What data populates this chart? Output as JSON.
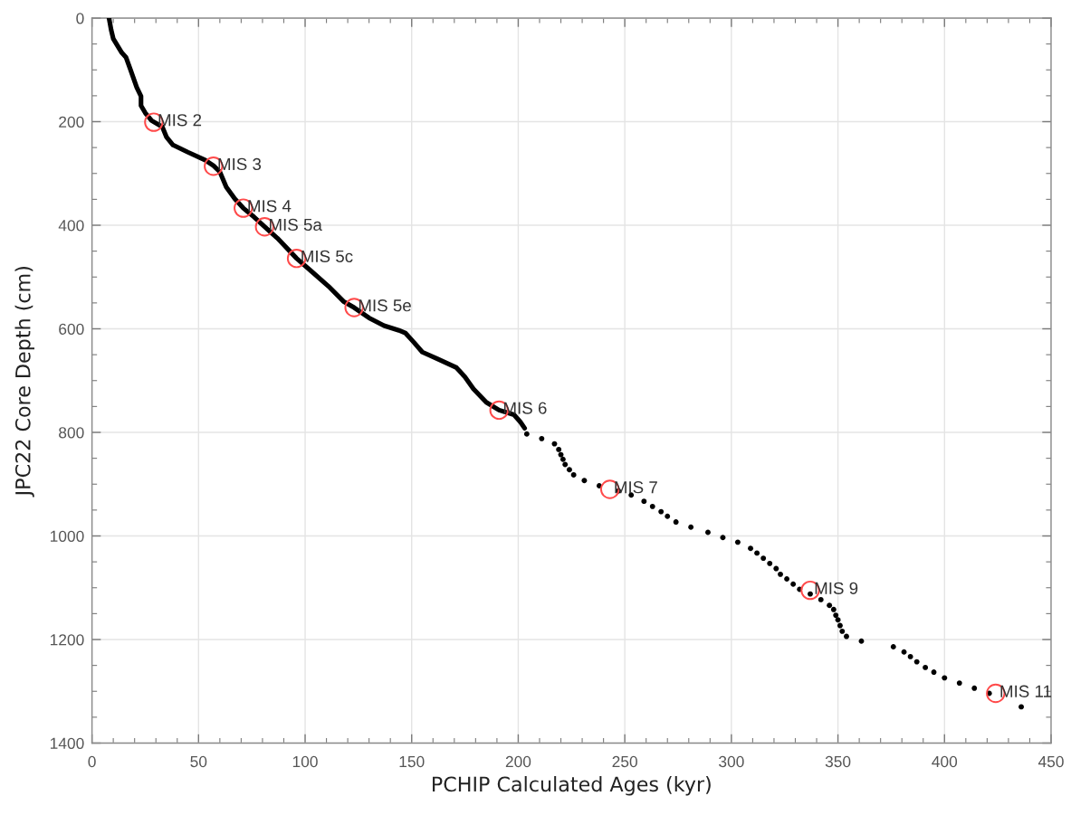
{
  "chart_data": {
    "type": "line",
    "xlabel": "PCHIP Calculated Ages (kyr)",
    "ylabel": "JPC22 Core Depth (cm)",
    "xlim": [
      0,
      450
    ],
    "ylim": [
      1400,
      0
    ],
    "xticks": [
      0,
      {
        "value": 10,
        "label": null
      },
      {
        "value": 20,
        "label": null
      },
      {
        "value": 30,
        "label": null
      },
      {
        "value": 40,
        "label": null
      },
      50,
      {
        "value": 60,
        "label": null
      },
      {
        "value": 70,
        "label": null
      },
      {
        "value": 80,
        "label": null
      },
      {
        "value": 90,
        "label": null
      },
      100,
      {
        "value": 110,
        "label": null
      },
      {
        "value": 120,
        "label": null
      },
      {
        "value": 130,
        "label": null
      },
      {
        "value": 140,
        "label": null
      },
      150,
      {
        "value": 160,
        "label": null
      },
      {
        "value": 170,
        "label": null
      },
      {
        "value": 180,
        "label": null
      },
      {
        "value": 190,
        "label": null
      },
      200,
      {
        "value": 210,
        "label": null
      },
      {
        "value": 220,
        "label": null
      },
      {
        "value": 230,
        "label": null
      },
      {
        "value": 240,
        "label": null
      },
      250,
      {
        "value": 260,
        "label": null
      },
      {
        "value": 270,
        "label": null
      },
      {
        "value": 280,
        "label": null
      },
      {
        "value": 290,
        "label": null
      },
      300,
      {
        "value": 310,
        "label": null
      },
      {
        "value": 320,
        "label": null
      },
      {
        "value": 330,
        "label": null
      },
      {
        "value": 340,
        "label": null
      },
      350,
      {
        "value": 360,
        "label": null
      },
      {
        "value": 370,
        "label": null
      },
      {
        "value": 380,
        "label": null
      },
      {
        "value": 390,
        "label": null
      },
      400,
      {
        "value": 410,
        "label": null
      },
      {
        "value": 420,
        "label": null
      },
      {
        "value": 430,
        "label": null
      },
      {
        "value": 440,
        "label": null
      },
      450
    ],
    "yticks": [
      0,
      {
        "value": 50,
        "label": null
      },
      {
        "value": 100,
        "label": null
      },
      {
        "value": 150,
        "label": null
      },
      200,
      {
        "value": 250,
        "label": null
      },
      {
        "value": 300,
        "label": null
      },
      {
        "value": 350,
        "label": null
      },
      400,
      {
        "value": 450,
        "label": null
      },
      {
        "value": 500,
        "label": null
      },
      {
        "value": 550,
        "label": null
      },
      600,
      {
        "value": 650,
        "label": null
      },
      {
        "value": 700,
        "label": null
      },
      {
        "value": 750,
        "label": null
      },
      800,
      {
        "value": 850,
        "label": null
      },
      {
        "value": 900,
        "label": null
      },
      {
        "value": 950,
        "label": null
      },
      1000,
      {
        "value": 1050,
        "label": null
      },
      {
        "value": 1100,
        "label": null
      },
      {
        "value": 1150,
        "label": null
      },
      1200,
      {
        "value": 1250,
        "label": null
      },
      {
        "value": 1300,
        "label": null
      },
      {
        "value": 1350,
        "label": null
      },
      1400
    ],
    "grid": true,
    "series": [
      {
        "color": "#000000",
        "line_style": "solid",
        "x": [
          8,
          9,
          10,
          14,
          16,
          18,
          21,
          23,
          23,
          25,
          28,
          33,
          35,
          38,
          45,
          53,
          57,
          60,
          63,
          67,
          71,
          76,
          81,
          87,
          96,
          103,
          111,
          118,
          123,
          130,
          137,
          144,
          147,
          151,
          155,
          162,
          171,
          175,
          179,
          185,
          191,
          198,
          201,
          203
        ],
        "values": [
          0,
          23,
          40,
          67,
          76,
          99,
          134,
          151,
          169,
          183,
          198,
          210,
          230,
          245,
          259,
          274,
          285,
          297,
          326,
          349,
          367,
          384,
          403,
          425,
          464,
          489,
          518,
          547,
          559,
          579,
          594,
          603,
          608,
          626,
          645,
          658,
          675,
          693,
          716,
          742,
          757,
          766,
          780,
          792
        ]
      },
      {
        "type": "scatter",
        "color": "#000000",
        "marker": "circle",
        "x": [
          204,
          211,
          217,
          219,
          220,
          221,
          222,
          224,
          226,
          231,
          238,
          247,
          253,
          259,
          263,
          267,
          270,
          274,
          281,
          289,
          296,
          303,
          309,
          312,
          315,
          318,
          321,
          323,
          326,
          329,
          332,
          337,
          342,
          346,
          348,
          349,
          350,
          351,
          352,
          354,
          361,
          376,
          381,
          384,
          387,
          391,
          395,
          400,
          407,
          414,
          421,
          436
        ],
        "values": [
          803,
          812,
          822,
          833,
          843,
          852,
          862,
          872,
          882,
          893,
          903,
          913,
          921,
          933,
          943,
          953,
          962,
          973,
          983,
          993,
          1003,
          1012,
          1024,
          1033,
          1043,
          1053,
          1063,
          1074,
          1083,
          1093,
          1103,
          1112,
          1123,
          1134,
          1142,
          1153,
          1162,
          1173,
          1184,
          1194,
          1203,
          1214,
          1224,
          1233,
          1243,
          1254,
          1263,
          1274,
          1284,
          1294,
          1304,
          1330
        ]
      }
    ],
    "annotations": [
      {
        "text": "MIS 2",
        "x": 29,
        "y": 201
      },
      {
        "text": "MIS 3",
        "x": 57,
        "y": 286
      },
      {
        "text": "MIS 4",
        "x": 71,
        "y": 367
      },
      {
        "text": "MIS 5a",
        "x": 81,
        "y": 403
      },
      {
        "text": "MIS 5c",
        "x": 96,
        "y": 464
      },
      {
        "text": "MIS 5e",
        "x": 123,
        "y": 559
      },
      {
        "text": "MIS 6",
        "x": 191,
        "y": 757
      },
      {
        "text": "MIS 7",
        "x": 243,
        "y": 910
      },
      {
        "text": "MIS 9",
        "x": 337,
        "y": 1105
      },
      {
        "text": "MIS 11",
        "x": 424,
        "y": 1304
      }
    ]
  }
}
